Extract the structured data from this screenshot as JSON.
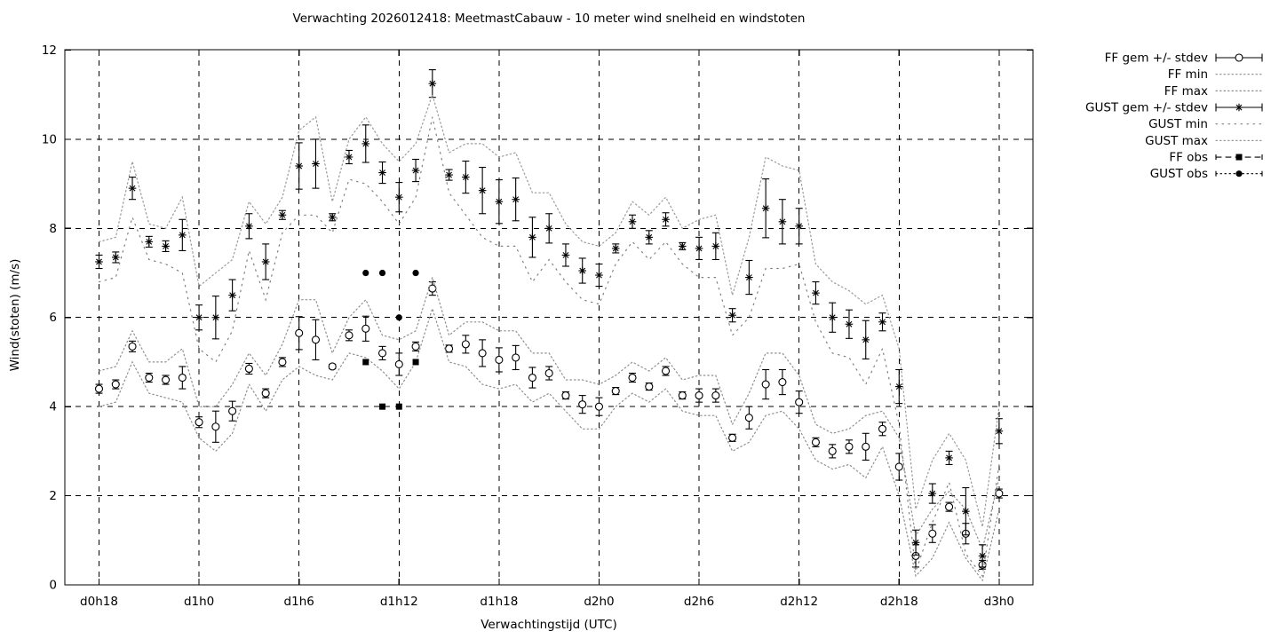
{
  "title": "Verwachting 2026012418: MeetmastCabauw - 10 meter wind snelheid en windstoten",
  "axes": {
    "xlabel": "Verwachtingstijd (UTC)",
    "ylabel": "Wind(stoten) (m/s)",
    "ylim": [
      0,
      12
    ],
    "yticks": [
      0,
      2,
      4,
      6,
      8,
      10,
      12
    ],
    "xticks": [
      {
        "hour": 0,
        "label": "d0h18"
      },
      {
        "hour": 6,
        "label": "d1h0"
      },
      {
        "hour": 12,
        "label": "d1h6"
      },
      {
        "hour": 18,
        "label": "d1h12"
      },
      {
        "hour": 24,
        "label": "d1h18"
      },
      {
        "hour": 30,
        "label": "d2h0"
      },
      {
        "hour": 36,
        "label": "d2h6"
      },
      {
        "hour": 42,
        "label": "d2h12"
      },
      {
        "hour": 48,
        "label": "d2h18"
      },
      {
        "hour": 54,
        "label": "d3h0"
      }
    ],
    "grid": true
  },
  "legend": {
    "position": "outside-top-right",
    "entries": [
      {
        "label": "FF gem +/- stdev",
        "key": "ff_mean"
      },
      {
        "label": "FF min",
        "key": "ff_min"
      },
      {
        "label": "FF max",
        "key": "ff_max"
      },
      {
        "label": "GUST gem +/- stdev",
        "key": "gust_mean"
      },
      {
        "label": "GUST min",
        "key": "gust_min"
      },
      {
        "label": "GUST max",
        "key": "gust_max"
      },
      {
        "label": "FF obs",
        "key": "ff_obs"
      },
      {
        "label": "GUST obs",
        "key": "gust_obs"
      }
    ]
  },
  "colors": {
    "foreground": "#000000",
    "background": "#ffffff",
    "envelope_gray": "#8f8f8f",
    "envelope_light_gray": "#9a9a9a"
  },
  "chart_data": {
    "type": "line",
    "x_unit": "hours since d0h18, hourly points",
    "x_index_range": [
      0,
      54
    ],
    "series": [
      {
        "name": "FF gem +/- stdev",
        "key": "ff_mean",
        "style": "errorbar-open-circle",
        "values": [
          4.4,
          4.5,
          5.35,
          4.65,
          4.6,
          4.65,
          3.65,
          3.55,
          3.9,
          4.85,
          4.3,
          5.0,
          5.65,
          5.5,
          4.9,
          5.6,
          5.75,
          5.2,
          4.95,
          5.35,
          6.65,
          5.3,
          5.4,
          5.2,
          5.05,
          5.1,
          4.65,
          4.75,
          4.25,
          4.05,
          4.0,
          4.35,
          4.65,
          4.45,
          4.8,
          4.25,
          4.25,
          4.25,
          3.3,
          3.75,
          4.5,
          4.55,
          4.1,
          3.2,
          3.0,
          3.1,
          3.1,
          3.5,
          2.65,
          0.65,
          1.15,
          1.75,
          1.15,
          0.45,
          2.05
        ],
        "stdev": [
          0.1,
          0.1,
          0.12,
          0.1,
          0.1,
          0.25,
          0.12,
          0.35,
          0.22,
          0.12,
          0.1,
          0.1,
          0.37,
          0.45,
          0.05,
          0.12,
          0.28,
          0.15,
          0.25,
          0.1,
          0.15,
          0.08,
          0.2,
          0.3,
          0.27,
          0.27,
          0.23,
          0.15,
          0.08,
          0.2,
          0.2,
          0.08,
          0.1,
          0.08,
          0.1,
          0.08,
          0.15,
          0.15,
          0.08,
          0.25,
          0.33,
          0.28,
          0.25,
          0.1,
          0.15,
          0.15,
          0.3,
          0.15,
          0.3,
          0.25,
          0.2,
          0.1,
          0.23,
          0.1,
          0.1
        ]
      },
      {
        "name": "FF min",
        "key": "ff_min",
        "style": "dotted",
        "values": [
          4.0,
          4.1,
          5.0,
          4.3,
          4.2,
          4.1,
          3.3,
          3.0,
          3.4,
          4.5,
          3.9,
          4.6,
          4.9,
          4.7,
          4.6,
          5.2,
          5.1,
          4.8,
          4.4,
          5.0,
          6.2,
          5.0,
          4.9,
          4.5,
          4.4,
          4.5,
          4.1,
          4.3,
          3.9,
          3.5,
          3.5,
          4.0,
          4.3,
          4.1,
          4.4,
          3.9,
          3.8,
          3.8,
          3.0,
          3.2,
          3.8,
          3.9,
          3.5,
          2.8,
          2.6,
          2.7,
          2.4,
          3.1,
          2.0,
          0.2,
          0.6,
          1.4,
          0.6,
          0.1,
          1.7
        ]
      },
      {
        "name": "FF max",
        "key": "ff_max",
        "style": "dotted",
        "values": [
          4.8,
          4.9,
          5.7,
          5.0,
          5.0,
          5.3,
          4.0,
          4.0,
          4.5,
          5.2,
          4.7,
          5.4,
          6.4,
          6.4,
          5.2,
          6.0,
          6.4,
          5.6,
          5.5,
          5.7,
          6.9,
          5.6,
          5.9,
          5.9,
          5.7,
          5.7,
          5.2,
          5.2,
          4.6,
          4.6,
          4.5,
          4.7,
          5.0,
          4.8,
          5.1,
          4.6,
          4.7,
          4.7,
          3.6,
          4.3,
          5.2,
          5.2,
          4.7,
          3.6,
          3.4,
          3.5,
          3.8,
          3.9,
          3.3,
          1.1,
          1.7,
          2.1,
          1.7,
          0.8,
          2.4
        ]
      },
      {
        "name": "GUST gem +/- stdev",
        "key": "gust_mean",
        "style": "errorbar-asterisk",
        "values": [
          7.25,
          7.35,
          8.9,
          7.7,
          7.6,
          7.85,
          6.0,
          6.0,
          6.5,
          8.05,
          7.25,
          8.3,
          9.4,
          9.45,
          8.25,
          9.6,
          9.9,
          9.25,
          8.7,
          9.3,
          11.25,
          9.2,
          9.15,
          8.85,
          8.6,
          8.65,
          7.8,
          8.0,
          7.4,
          7.05,
          6.95,
          7.55,
          8.15,
          7.8,
          8.2,
          7.6,
          7.55,
          7.6,
          6.05,
          6.9,
          8.45,
          8.15,
          8.05,
          6.55,
          6.0,
          5.85,
          5.5,
          5.9,
          4.45,
          0.95,
          2.05,
          2.85,
          1.65,
          0.65,
          3.45
        ],
        "stdev": [
          0.15,
          0.12,
          0.25,
          0.12,
          0.12,
          0.35,
          0.28,
          0.48,
          0.35,
          0.28,
          0.4,
          0.1,
          0.52,
          0.55,
          0.08,
          0.15,
          0.42,
          0.24,
          0.33,
          0.25,
          0.31,
          0.12,
          0.36,
          0.52,
          0.49,
          0.48,
          0.45,
          0.33,
          0.25,
          0.28,
          0.25,
          0.1,
          0.15,
          0.15,
          0.15,
          0.08,
          0.25,
          0.3,
          0.15,
          0.38,
          0.66,
          0.5,
          0.4,
          0.25,
          0.33,
          0.32,
          0.43,
          0.2,
          0.38,
          0.28,
          0.22,
          0.15,
          0.53,
          0.25,
          0.28
        ]
      },
      {
        "name": "GUST min",
        "key": "gust_min",
        "style": "dotted-sparse",
        "values": [
          6.8,
          6.9,
          8.25,
          7.3,
          7.2,
          7.0,
          5.3,
          5.0,
          5.7,
          7.5,
          6.4,
          7.9,
          8.3,
          8.3,
          7.9,
          9.1,
          9.0,
          8.6,
          8.1,
          8.7,
          10.5,
          8.8,
          8.3,
          7.8,
          7.6,
          7.6,
          6.8,
          7.3,
          6.8,
          6.4,
          6.3,
          7.2,
          7.7,
          7.3,
          7.7,
          7.2,
          6.9,
          6.9,
          5.6,
          6.0,
          7.1,
          7.1,
          7.2,
          5.9,
          5.2,
          5.1,
          4.5,
          5.3,
          3.6,
          0.3,
          1.4,
          2.3,
          0.7,
          0.2,
          2.7
        ]
      },
      {
        "name": "GUST max",
        "key": "gust_max",
        "style": "dotted",
        "values": [
          7.7,
          7.8,
          9.5,
          8.1,
          8.0,
          8.7,
          6.7,
          7.0,
          7.3,
          8.6,
          8.1,
          8.7,
          10.2,
          10.5,
          8.6,
          10.0,
          10.5,
          9.9,
          9.5,
          9.9,
          11.0,
          9.7,
          9.9,
          9.9,
          9.6,
          9.7,
          8.8,
          8.8,
          8.1,
          7.7,
          7.6,
          7.9,
          8.6,
          8.3,
          8.7,
          8.0,
          8.2,
          8.3,
          6.5,
          7.8,
          9.6,
          9.4,
          9.3,
          7.2,
          6.8,
          6.6,
          6.3,
          6.5,
          5.3,
          1.7,
          2.8,
          3.4,
          2.8,
          1.3,
          4.0
        ]
      },
      {
        "name": "FF obs",
        "key": "ff_obs",
        "style": "filled-square",
        "points": [
          [
            16,
            5.0
          ],
          [
            17,
            4.0
          ],
          [
            18,
            4.0
          ],
          [
            19,
            5.0
          ]
        ]
      },
      {
        "name": "GUST obs",
        "key": "gust_obs",
        "style": "filled-circle",
        "points": [
          [
            16,
            7.0
          ],
          [
            17,
            7.0
          ],
          [
            18,
            6.0
          ],
          [
            19,
            7.0
          ]
        ]
      }
    ]
  }
}
